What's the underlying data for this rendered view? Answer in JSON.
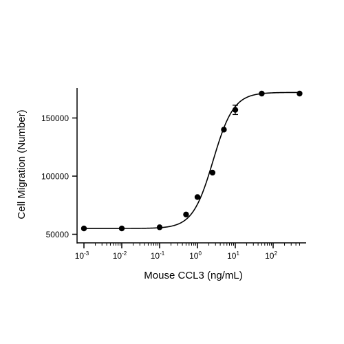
{
  "chart_data": {
    "type": "scatter",
    "title": "",
    "xlabel": "Mouse CCL3 (ng/mL)",
    "ylabel": "Cell Migration (Number)",
    "x_scale": "log10",
    "xlim": [
      0.001,
      500
    ],
    "ylim": [
      45000,
      180000
    ],
    "x_ticks": [
      {
        "base": "10",
        "exp": "-3"
      },
      {
        "base": "10",
        "exp": "-2"
      },
      {
        "base": "10",
        "exp": "-1"
      },
      {
        "base": "10",
        "exp": "0"
      },
      {
        "base": "10",
        "exp": "1"
      },
      {
        "base": "10",
        "exp": "2"
      }
    ],
    "y_ticks": [
      "50000",
      "100000",
      "150000"
    ],
    "series": [
      {
        "x": [
          0.001,
          0.01,
          0.1,
          0.5,
          1,
          2.5,
          5,
          10,
          50,
          500
        ],
        "y": [
          55000,
          55000,
          56000,
          67000,
          82000,
          103000,
          140000,
          157000,
          171000,
          171000
        ],
        "error": [
          0,
          0,
          0,
          0,
          0,
          0,
          0,
          4000,
          0,
          0
        ]
      }
    ],
    "fit": {
      "model": "4PL",
      "bottom": 55000,
      "top": 172000,
      "ec50": 2.6,
      "hill": 1.6
    },
    "grid": false,
    "legend": "none",
    "colors": {
      "marker": "#000000",
      "curve": "#000000",
      "axis": "#000000"
    }
  }
}
